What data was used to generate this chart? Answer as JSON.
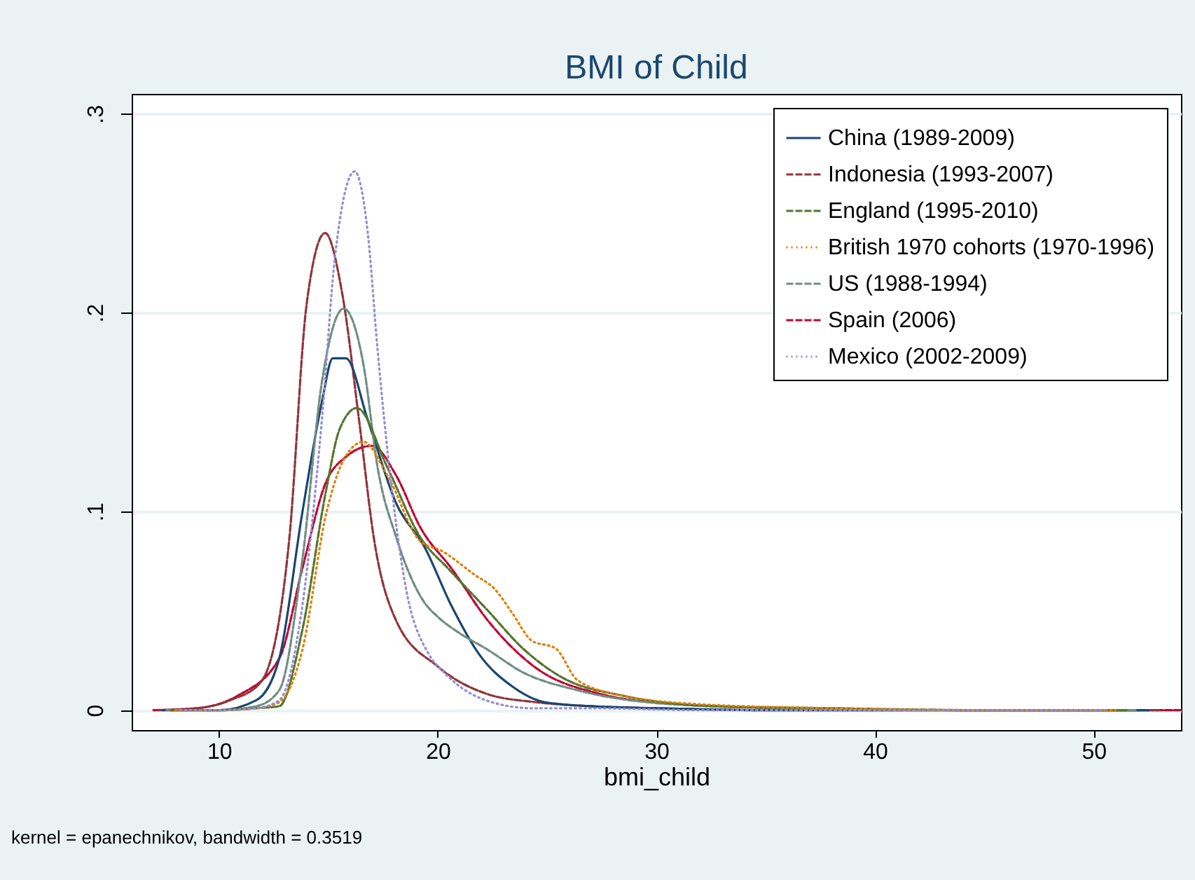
{
  "chart_data": {
    "type": "line",
    "title": "BMI of Child",
    "xlabel": "bmi_child",
    "annotations": [
      "kernel = epanechnikov, bandwidth = 0.3519"
    ],
    "xlim": [
      6,
      54
    ],
    "xticks": [
      10,
      20,
      30,
      40,
      50
    ],
    "ylim": [
      -0.01,
      0.31
    ],
    "yticks": [
      {
        "value": 0,
        "label": "0"
      },
      {
        "value": 0.1,
        "label": ".1"
      },
      {
        "value": 0.2,
        "label": ".2"
      },
      {
        "value": 0.3,
        "label": ".3"
      }
    ],
    "grid": "y",
    "legend": "top right",
    "marker": "none",
    "series": [
      {
        "name": "China (1989-2009)",
        "color": "#1a476f",
        "line_style": "solid",
        "x": [
          7.4,
          10,
          11.7,
          12.75,
          13.8,
          14.7,
          15.2,
          15.8,
          16.8,
          18.1,
          19.4,
          20.65,
          21.9,
          23.4,
          24.9,
          27,
          30,
          35,
          45,
          52.5
        ],
        "values": [
          0,
          0,
          0.005,
          0.026,
          0.099,
          0.155,
          0.177,
          0.177,
          0.146,
          0.104,
          0.082,
          0.052,
          0.028,
          0.012,
          0.004,
          0.002,
          0.001,
          0,
          0,
          0
        ]
      },
      {
        "name": "Indonesia (1993-2007)",
        "color": "#90353b",
        "line_style": "dashed",
        "x": [
          7.2,
          9,
          10.5,
          11.9,
          13.2,
          14.0,
          14.85,
          15.64,
          16.4,
          17.1,
          18.1,
          20.0,
          22.3,
          24.5,
          27,
          30,
          35,
          45,
          53
        ],
        "values": [
          0,
          0.001,
          0.005,
          0.014,
          0.085,
          0.204,
          0.24,
          0.209,
          0.146,
          0.085,
          0.045,
          0.022,
          0.008,
          0.004,
          0.002,
          0.001,
          0,
          0,
          0
        ]
      },
      {
        "name": "England (1995-2010)",
        "color": "#55752f",
        "line_style": "dashed",
        "x": [
          7.8,
          10,
          11.7,
          12.75,
          13.8,
          14.9,
          15.5,
          16.3,
          17.7,
          19.2,
          20.5,
          22.3,
          23.9,
          25.6,
          28.6,
          32.8,
          38,
          45,
          51.5
        ],
        "values": [
          0,
          0,
          0.001,
          0.002,
          0.04,
          0.111,
          0.141,
          0.152,
          0.122,
          0.087,
          0.071,
          0.05,
          0.031,
          0.017,
          0.007,
          0.002,
          0.001,
          0,
          0
        ]
      },
      {
        "name": "British 1970 cohorts (1970-1996)",
        "color": "#e37e00",
        "line_style": "dotted",
        "x": [
          8,
          10,
          11.7,
          12.75,
          13.8,
          14.9,
          15.75,
          16.6,
          17.7,
          19.2,
          20.2,
          21.7,
          22.6,
          23.4,
          24.3,
          25.4,
          26.4,
          28.6,
          32,
          38,
          45,
          51
        ],
        "values": [
          0,
          0,
          0.001,
          0.004,
          0.03,
          0.099,
          0.127,
          0.135,
          0.118,
          0.085,
          0.08,
          0.068,
          0.061,
          0.049,
          0.035,
          0.031,
          0.015,
          0.007,
          0.003,
          0.001,
          0,
          0
        ]
      },
      {
        "name": "US (1988-1994)",
        "color": "#6e8e84",
        "line_style": "dashed",
        "x": [
          7.6,
          10,
          11.7,
          12.75,
          13.8,
          14.7,
          15.7,
          16.6,
          17.25,
          18.1,
          19.4,
          20.0,
          21.1,
          22.2,
          23.9,
          26.4,
          30.7,
          36,
          45,
          52
        ],
        "values": [
          0,
          0,
          0.002,
          0.01,
          0.075,
          0.165,
          0.202,
          0.174,
          0.122,
          0.087,
          0.054,
          0.047,
          0.038,
          0.031,
          0.019,
          0.01,
          0.003,
          0.001,
          0,
          0
        ]
      },
      {
        "name": "Spain (2006)",
        "color": "#c10534",
        "line_style": "dashed",
        "x": [
          7,
          9,
          10.8,
          12.75,
          13.8,
          14.9,
          15.75,
          17.0,
          18.1,
          19.2,
          20.65,
          22.3,
          24.4,
          27.5,
          31,
          36,
          45,
          54
        ],
        "values": [
          0,
          0.001,
          0.007,
          0.026,
          0.071,
          0.115,
          0.127,
          0.133,
          0.118,
          0.092,
          0.071,
          0.045,
          0.022,
          0.008,
          0.003,
          0.001,
          0,
          0
        ]
      },
      {
        "name": "Mexico (2002-2009)",
        "color": "#938dd2",
        "line_style": "dotted",
        "x": [
          8.2,
          10,
          11.7,
          12.75,
          13.8,
          14.7,
          15.3,
          16.2,
          16.8,
          17.25,
          17.9,
          18.5,
          19.6,
          20.2,
          22.2,
          24.3,
          27,
          32,
          45,
          50.5
        ],
        "values": [
          0,
          0,
          0.001,
          0.005,
          0.052,
          0.146,
          0.228,
          0.271,
          0.24,
          0.181,
          0.111,
          0.064,
          0.028,
          0.02,
          0.005,
          0.001,
          0.001,
          0,
          0,
          0
        ]
      }
    ]
  }
}
